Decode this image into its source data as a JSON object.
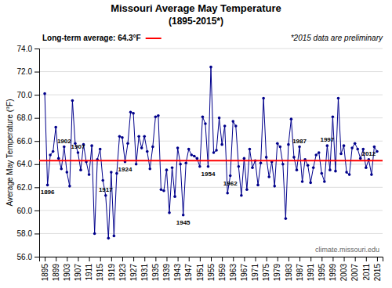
{
  "chart_data": {
    "type": "line",
    "title": "Missouri Average May Temperature",
    "subtitle": "(1895-2015*)",
    "y_label": "Average May Temperature (°F)",
    "note": "*2015 data are preliminary",
    "watermark": "climate.missouri.edu",
    "color": "#00008B",
    "marker": "circle",
    "grid": true,
    "x": [
      1895,
      1896,
      1897,
      1898,
      1899,
      1900,
      1901,
      1902,
      1903,
      1904,
      1905,
      1906,
      1907,
      1908,
      1909,
      1910,
      1911,
      1912,
      1913,
      1914,
      1915,
      1916,
      1917,
      1918,
      1919,
      1920,
      1921,
      1922,
      1923,
      1924,
      1925,
      1926,
      1927,
      1928,
      1929,
      1930,
      1931,
      1932,
      1933,
      1934,
      1935,
      1936,
      1937,
      1938,
      1939,
      1940,
      1941,
      1942,
      1943,
      1944,
      1945,
      1946,
      1947,
      1948,
      1949,
      1950,
      1951,
      1952,
      1953,
      1954,
      1955,
      1956,
      1957,
      1958,
      1959,
      1960,
      1961,
      1962,
      1963,
      1964,
      1965,
      1966,
      1967,
      1968,
      1969,
      1970,
      1971,
      1972,
      1973,
      1974,
      1975,
      1976,
      1977,
      1978,
      1979,
      1980,
      1981,
      1982,
      1983,
      1984,
      1985,
      1986,
      1987,
      1988,
      1989,
      1990,
      1991,
      1992,
      1993,
      1994,
      1995,
      1996,
      1997,
      1998,
      1999,
      2000,
      2001,
      2002,
      2003,
      2004,
      2005,
      2006,
      2007,
      2008,
      2009,
      2010,
      2011,
      2012,
      2013,
      2014,
      2015
    ],
    "values": [
      70.1,
      62.2,
      64.8,
      65.1,
      67.2,
      64.5,
      63.6,
      65.5,
      63.3,
      62.1,
      69.5,
      65.8,
      65.0,
      63.5,
      65.7,
      64.2,
      63.1,
      65.6,
      58.0,
      64.4,
      65.3,
      62.6,
      61.3,
      57.6,
      63.3,
      57.8,
      63.2,
      66.4,
      66.3,
      64.2,
      65.8,
      68.5,
      68.4,
      64.0,
      66.4,
      65.4,
      66.4,
      65.1,
      63.6,
      65.5,
      68.1,
      68.2,
      61.8,
      61.7,
      63.5,
      59.8,
      63.7,
      61.2,
      65.4,
      64.0,
      59.6,
      64.1,
      65.3,
      64.8,
      64.7,
      64.5,
      63.8,
      68.1,
      67.5,
      63.8,
      72.4,
      65.0,
      65.2,
      68.0,
      65.7,
      67.3,
      61.5,
      63.0,
      67.7,
      67.3,
      63.8,
      61.3,
      64.5,
      61.8,
      65.3,
      63.7,
      64.3,
      62.2,
      64.1,
      69.7,
      64.6,
      62.9,
      64.2,
      62.1,
      65.8,
      65.5,
      64.0,
      59.3,
      65.7,
      67.9,
      64.6,
      63.5,
      65.5,
      62.5,
      64.4,
      63.9,
      62.4,
      63.7,
      64.8,
      65.0,
      63.2,
      62.5,
      65.6,
      63.5,
      68.1,
      63.4,
      69.7,
      64.9,
      65.6,
      63.3,
      63.1,
      65.4,
      65.8,
      65.3,
      64.5,
      65.3,
      63.7,
      64.4,
      63.1,
      65.5,
      65.1
    ],
    "xlim": [
      1893,
      2017
    ],
    "xticks": [
      1895,
      1899,
      1903,
      1907,
      1911,
      1915,
      1919,
      1923,
      1927,
      1931,
      1935,
      1939,
      1943,
      1947,
      1951,
      1955,
      1959,
      1963,
      1967,
      1971,
      1975,
      1979,
      1983,
      1987,
      1991,
      1995,
      1999,
      2003,
      2007,
      2011,
      2015
    ],
    "ylim": [
      56.0,
      74.0
    ],
    "yticks": [
      {
        "value": 56.0,
        "label": "56.0"
      },
      {
        "value": 58.0,
        "label": "58.0"
      },
      {
        "value": 60.0,
        "label": "60.0"
      },
      {
        "value": 62.0,
        "label": "62.0"
      },
      {
        "value": 64.0,
        "label": "64.0"
      },
      {
        "value": 66.0,
        "label": "66.0"
      },
      {
        "value": 68.0,
        "label": "68.0"
      },
      {
        "value": 70.0,
        "label": "70.0"
      },
      {
        "value": 72.0,
        "label": "72.0"
      },
      {
        "value": 74.0,
        "label": "74.0"
      }
    ],
    "reference_line": {
      "value": 64.3,
      "label": "Long-term average: 64.3°F",
      "color": "#FF0000"
    },
    "annotations": [
      {
        "x": 1896,
        "text": "1896"
      },
      {
        "x": 1902,
        "text": "1902"
      },
      {
        "x": 1907,
        "text": "1907"
      },
      {
        "x": 1917,
        "text": "1917"
      },
      {
        "x": 1924,
        "text": "1924"
      },
      {
        "x": 1945,
        "text": "1945"
      },
      {
        "x": 1954,
        "text": "1954"
      },
      {
        "x": 1962,
        "text": "1962"
      },
      {
        "x": 1987,
        "text": "1987"
      },
      {
        "x": 1997,
        "text": "1997"
      },
      {
        "x": 2012,
        "text": "2012"
      }
    ]
  }
}
